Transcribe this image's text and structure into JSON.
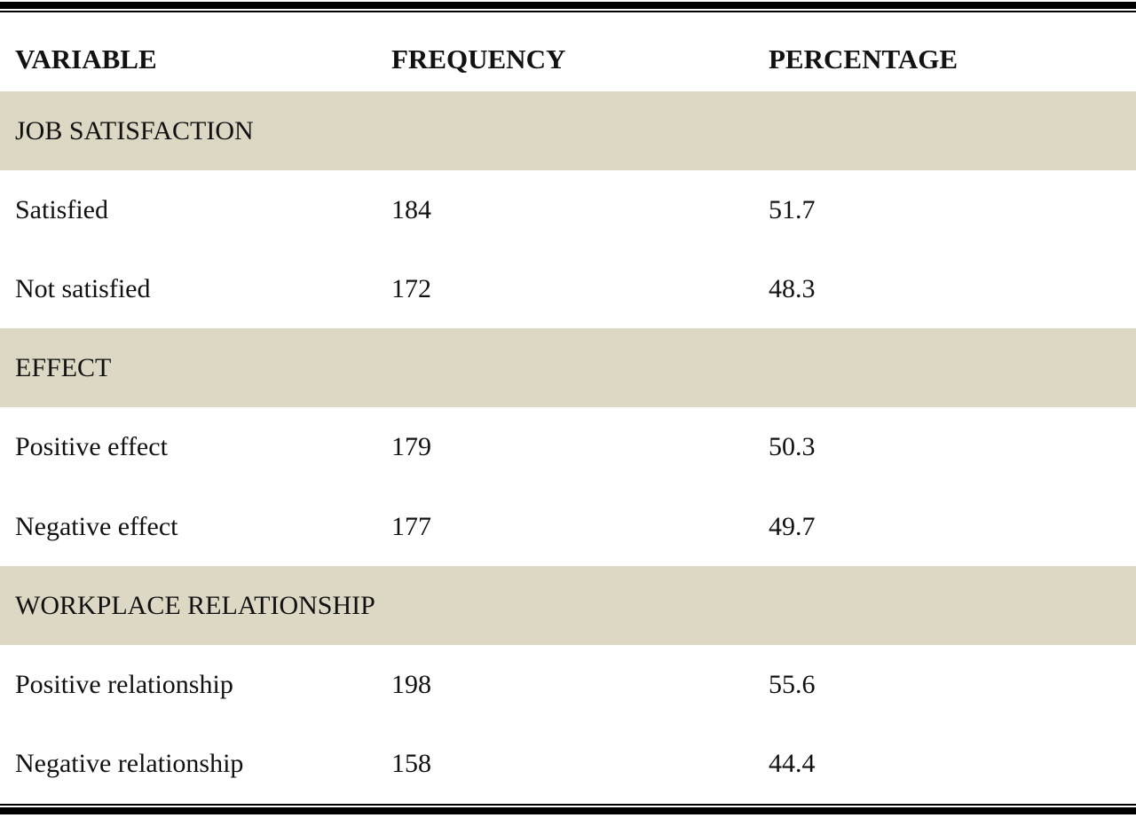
{
  "table": {
    "header": [
      "VARIABLE",
      "FREQUENCY",
      "PERCENTAGE"
    ],
    "rows": [
      [
        "JOB SATISFACTION"
      ],
      [
        "Satisfied",
        184,
        51.7
      ],
      [
        "Not satisfied",
        172,
        48.3
      ],
      [
        "EFFECT"
      ],
      [
        "Positive effect",
        179,
        50.3
      ],
      [
        "Negative effect",
        177,
        49.7
      ],
      [
        "WORKPLACE RELATIONSHIP"
      ],
      [
        "Positive relationship",
        198,
        55.6
      ],
      [
        "Negative relationship",
        158,
        44.4
      ]
    ]
  }
}
